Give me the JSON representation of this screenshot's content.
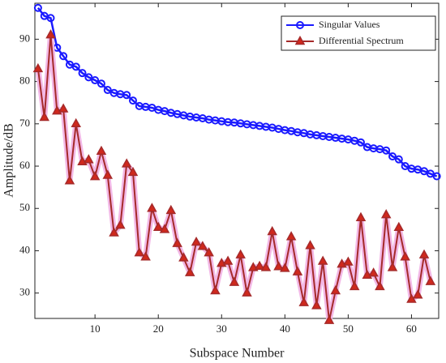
{
  "chart_data": {
    "type": "line",
    "x_label": "Subspace Number",
    "y_label": "Amplitude/dB",
    "xlim": [
      0.5,
      64.3
    ],
    "ylim": [
      24,
      98.5
    ],
    "xticks": [
      10,
      20,
      30,
      40,
      50,
      60
    ],
    "yticks": [
      30,
      40,
      50,
      60,
      70,
      80,
      90
    ],
    "legend": "upper right",
    "series": [
      {
        "name": "Singular Values",
        "color": "#1a1aff",
        "marker": "circle",
        "x": [
          1,
          2,
          3,
          4,
          5,
          6,
          7,
          8,
          9,
          10,
          11,
          12,
          13,
          14,
          15,
          16,
          17,
          18,
          19,
          20,
          21,
          22,
          23,
          24,
          25,
          26,
          27,
          28,
          29,
          30,
          31,
          32,
          33,
          34,
          35,
          36,
          37,
          38,
          39,
          40,
          41,
          42,
          43,
          44,
          45,
          46,
          47,
          48,
          49,
          50,
          51,
          52,
          53,
          54,
          55,
          56,
          57,
          58,
          59,
          60,
          61,
          62,
          63,
          64
        ],
        "values": [
          97.4,
          95.5,
          95,
          88,
          86,
          84,
          83.5,
          82,
          81,
          80.3,
          79.5,
          78,
          77.3,
          77,
          76.8,
          75.5,
          74.2,
          74,
          73.8,
          73.3,
          73,
          72.6,
          72.3,
          72,
          71.7,
          71.5,
          71.3,
          71,
          70.8,
          70.6,
          70.4,
          70.3,
          70.1,
          69.9,
          69.7,
          69.5,
          69.3,
          69.1,
          68.8,
          68.5,
          68.3,
          68,
          67.8,
          67.5,
          67.3,
          67.1,
          66.9,
          66.7,
          66.5,
          66.3,
          66,
          65.6,
          64.5,
          64.2,
          64,
          63.7,
          62.3,
          61.6,
          60,
          59.4,
          59.2,
          58.8,
          58.2,
          57.6
        ]
      },
      {
        "name": "Differential Spectrum",
        "color": "#a52a2a",
        "marker": "triangle",
        "x": [
          1,
          2,
          3,
          4,
          5,
          6,
          7,
          8,
          9,
          10,
          11,
          12,
          13,
          14,
          15,
          16,
          17,
          18,
          19,
          20,
          21,
          22,
          23,
          24,
          25,
          26,
          27,
          28,
          29,
          30,
          31,
          32,
          33,
          34,
          35,
          36,
          37,
          38,
          39,
          40,
          41,
          42,
          43,
          44,
          45,
          46,
          47,
          48,
          49,
          50,
          51,
          52,
          53,
          54,
          55,
          56,
          57,
          58,
          59,
          60,
          61,
          62,
          63
        ],
        "values": [
          83,
          71.5,
          91,
          73,
          73.5,
          56.5,
          70,
          61,
          61.5,
          57.5,
          63.5,
          57.8,
          44.2,
          46,
          60.5,
          58.5,
          39.5,
          38.5,
          50,
          45.5,
          45,
          49.5,
          41.7,
          38.3,
          34.8,
          42,
          41,
          39.5,
          30.5,
          37,
          37.5,
          32.5,
          39,
          30,
          36,
          36.3,
          36,
          44.5,
          36.2,
          35.8,
          43.3,
          35,
          27.7,
          41.2,
          27,
          37.5,
          23.5,
          30.5,
          36.8,
          37.3,
          31.5,
          47.8,
          34.2,
          34.7,
          31.5,
          48.5,
          36,
          45.5,
          38.5,
          28.5,
          29.5,
          39,
          32.7
        ]
      }
    ]
  }
}
